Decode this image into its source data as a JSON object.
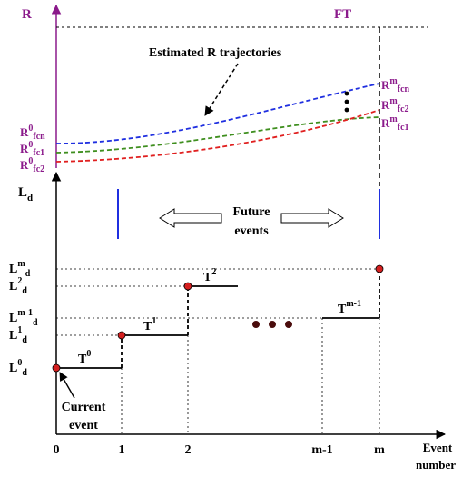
{
  "top_panel": {
    "y_axis_label": "R",
    "threshold_label": "FT",
    "annotation": "Estimated R trajectories",
    "start_labels": [
      {
        "base": "R",
        "sup": "0",
        "sub": "fcn"
      },
      {
        "base": "R",
        "sup": "0",
        "sub": "fc1"
      },
      {
        "base": "R",
        "sup": "0",
        "sub": "fc2"
      }
    ],
    "end_labels": [
      {
        "base": "R",
        "sup": "m",
        "sub": "fcn"
      },
      {
        "base": "R",
        "sup": "m",
        "sub": "fc2"
      },
      {
        "base": "R",
        "sup": "m",
        "sub": "fc1"
      }
    ],
    "curve_colors": {
      "fcn": "#1f2fe0",
      "fc1": "#3f8f1f",
      "fc2": "#e01f1f"
    },
    "axis_color": "#8b1a8b"
  },
  "future_events": {
    "line1": "Future",
    "line2": "events"
  },
  "bottom_panel": {
    "y_axis_label": {
      "base": "L",
      "sub": "d"
    },
    "y_levels": [
      {
        "base": "L",
        "sup": "m",
        "sub": "d"
      },
      {
        "base": "L",
        "sup": "2",
        "sub": "d"
      },
      {
        "base": "L",
        "sup": "m-1",
        "sub": "d"
      },
      {
        "base": "L",
        "sup": "1",
        "sub": "d"
      },
      {
        "base": "L",
        "sup": "0",
        "sub": "d"
      }
    ],
    "segment_labels": [
      {
        "base": "T",
        "sup": "0"
      },
      {
        "base": "T",
        "sup": "1"
      },
      {
        "base": "T",
        "sup": "2"
      },
      {
        "base": "T",
        "sup": "m-1"
      }
    ],
    "current_event": {
      "line1": "Current",
      "line2": "event"
    },
    "x_ticks": [
      "0",
      "1",
      "2",
      "m-1",
      "m"
    ],
    "x_axis_label": {
      "line1": "Event",
      "line2": "number"
    }
  }
}
